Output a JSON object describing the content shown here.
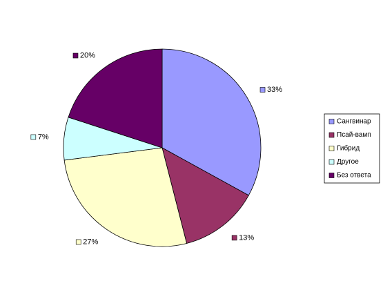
{
  "chart_data": {
    "type": "pie",
    "categories": [
      "Сангвинар",
      "Псай-вамп",
      "Гибрид",
      "Другое",
      "Без ответа"
    ],
    "values": [
      33,
      13,
      27,
      7,
      20
    ],
    "value_labels": [
      "33%",
      "13%",
      "27%",
      "7%",
      "20%"
    ],
    "colors": [
      "#9999ff",
      "#993366",
      "#ffffcc",
      "#ccffff",
      "#660066"
    ],
    "legend": "right"
  }
}
